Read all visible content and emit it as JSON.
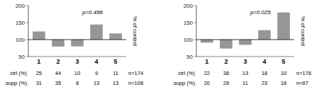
{
  "chart_data": [
    {
      "type": "bar",
      "categories": [
        "1",
        "2",
        "3",
        "4",
        "5"
      ],
      "values": [
        124.0,
        79.545,
        80.0,
        144.444,
        118.182
      ],
      "baseline": 100,
      "color": "#969696",
      "ylim": [
        50,
        200
      ],
      "yticks": [
        50,
        100,
        150,
        200
      ],
      "y_label": "% of control",
      "annotations": [
        "p=0.496"
      ],
      "table_rows": [
        {
          "name": "ctrl (%)",
          "values": [
            25,
            44,
            10,
            9,
            11
          ],
          "n_label": "n=174"
        },
        {
          "name": "supp (%)",
          "values": [
            31,
            35,
            8,
            13,
            13
          ],
          "n_label": "n=108"
        }
      ]
    },
    {
      "type": "bar",
      "categories": [
        "1",
        "2",
        "3",
        "4",
        "5"
      ],
      "values": [
        90.909,
        73.684,
        84.615,
        127.778,
        180.0
      ],
      "baseline": 100,
      "color": "#969696",
      "ylim": [
        50,
        200
      ],
      "yticks": [
        50,
        100,
        150,
        200
      ],
      "y_label": "% of control",
      "annotations": [
        "p=0.025"
      ],
      "table_rows": [
        {
          "name": "ctrl (%)",
          "values": [
            22,
            38,
            13,
            18,
            10
          ],
          "n_label": "n=176"
        },
        {
          "name": "supp (%)",
          "values": [
            20,
            28,
            11,
            23,
            18
          ],
          "n_label": "n=87"
        }
      ]
    }
  ]
}
